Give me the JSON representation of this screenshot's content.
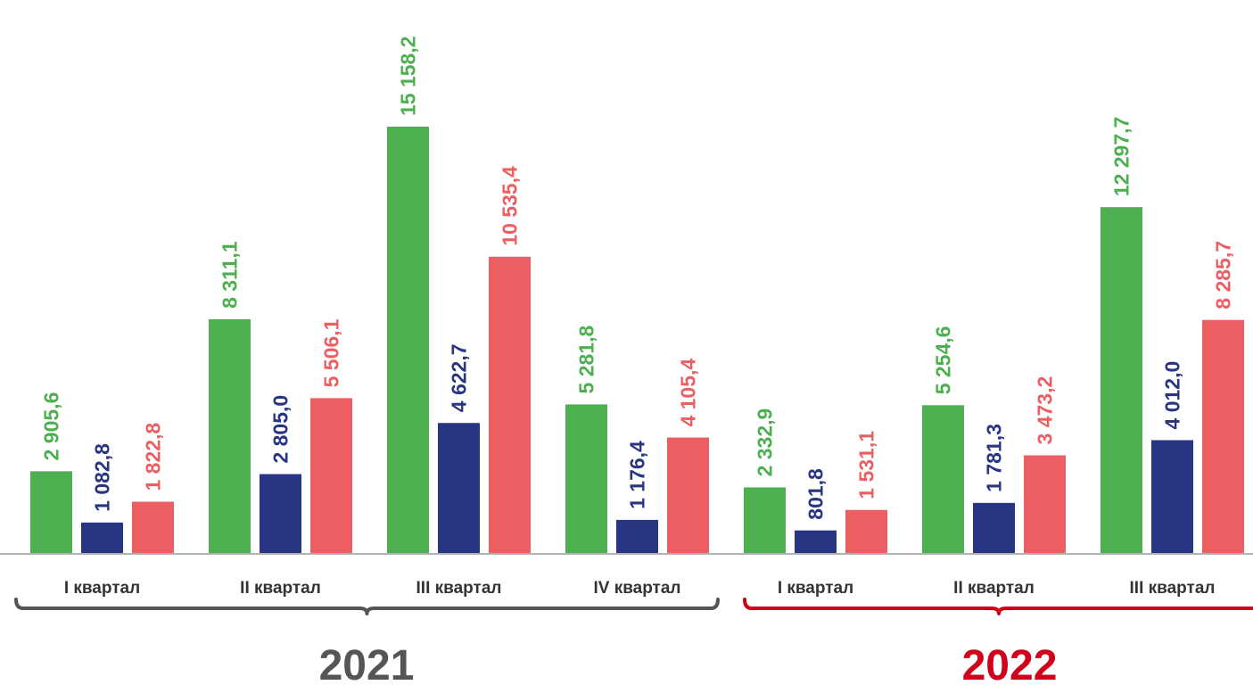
{
  "chart_data": {
    "type": "bar",
    "categories": [
      "I квартал",
      "II квартал",
      "III квартал",
      "IV квартал",
      "I квартал",
      "II квартал",
      "III квартал"
    ],
    "groups": [
      {
        "label": "2021",
        "color": "#555555",
        "bracket_color": "#555555",
        "category_indices": [
          0,
          1,
          2,
          3
        ]
      },
      {
        "label": "2022",
        "color": "#d0021b",
        "bracket_color": "#d0021b",
        "category_indices": [
          4,
          5,
          6
        ]
      }
    ],
    "series": [
      {
        "color": "#4caf50",
        "values": [
          2905.6,
          8311.1,
          15158.2,
          5281.8,
          2332.9,
          5254.6,
          12297.7
        ],
        "labels": [
          "2 905,6",
          "8 311,1",
          "15 158,2",
          "5 281,8",
          "2 332,9",
          "5 254,6",
          "12 297,7"
        ]
      },
      {
        "color": "#283583",
        "values": [
          1082.8,
          2805.0,
          4622.7,
          1176.4,
          801.8,
          1781.3,
          4012.0
        ],
        "labels": [
          "1 082,8",
          "2 805,0",
          "4 622,7",
          "1 176,4",
          "801,8",
          "1 781,3",
          "4 012,0"
        ]
      },
      {
        "color": "#eb5f62",
        "values": [
          1822.8,
          5506.1,
          10535.4,
          4105.4,
          1531.1,
          3473.2,
          8285.7
        ],
        "labels": [
          "1 822,8",
          "5 506,1",
          "10 535,4",
          "4 105,4",
          "1 531,1",
          "3 473,2",
          "8 285,7"
        ]
      }
    ],
    "ylim": [
      0,
      16000
    ],
    "grid": false,
    "legend": "none",
    "axis_color": "#b0b0b0",
    "label_orientation": "vertical"
  }
}
